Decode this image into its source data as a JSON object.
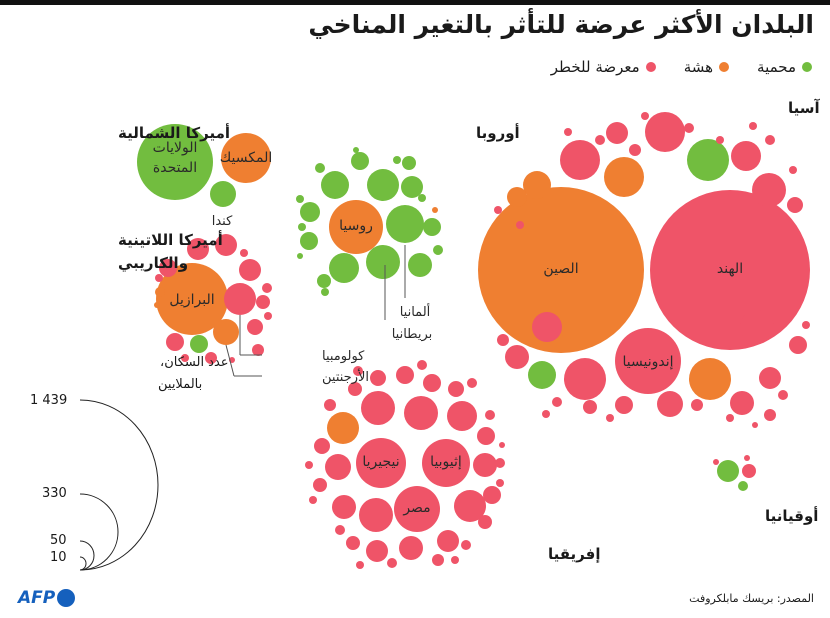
{
  "title": "البلدان الأكثر عرضة للتأثر بالتغير المناخي",
  "legend": [
    {
      "label": "محمية",
      "color": "#72bd3f"
    },
    {
      "label": "هشة",
      "color": "#ef7f31"
    },
    {
      "label": "معرضة للخطر",
      "color": "#ef5468"
    }
  ],
  "colors": {
    "protected": "#72bd3f",
    "fragile": "#ef7f31",
    "at_risk": "#ef5468"
  },
  "regions": {
    "north_america": "أميركا الشمالية",
    "latin_america_1": "أميركا اللاتينية",
    "latin_america_2": "والكاريبي",
    "europe": "أوروبا",
    "asia": "آسيا",
    "africa": "إفريقيا",
    "oceania": "أوقيانيا"
  },
  "countries": {
    "usa_1": "الولايات",
    "usa_2": "المتحدة",
    "mexico": "المكسيك",
    "canada": "كندا",
    "brazil": "البرازيل",
    "colombia": "كولومبيا",
    "argentina": "الأرجنتين",
    "russia": "روسيا",
    "germany": "ألمانيا",
    "britain": "بريطانيا",
    "china": "الصين",
    "india": "الهند",
    "indonesia": "إندونيسيا",
    "nigeria": "نيجيريا",
    "ethiopia": "إثيوبيا",
    "egypt": "مصر"
  },
  "scale": {
    "title_1": "عدد السكان،",
    "title_2": "بالملايين",
    "values": [
      "1 439",
      "330",
      "50",
      "10"
    ]
  },
  "source": "المصدر: بريسك مابلكروفت",
  "logo": "AFP"
}
